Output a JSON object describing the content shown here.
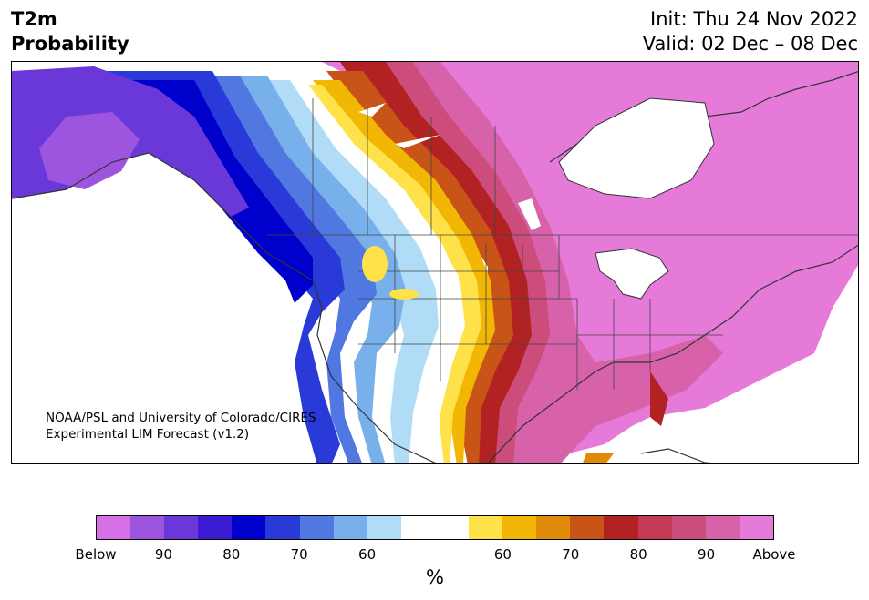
{
  "title": {
    "line1": "T2m",
    "line2": "Probability"
  },
  "init": {
    "line1": "Init: Thu 24 Nov 2022",
    "line2": "Valid: 02 Dec – 08 Dec"
  },
  "credit": {
    "line1": "NOAA/PSL and University of Colorado/CIRES",
    "line2": "Experimental LIM Forecast (v1.2)"
  },
  "colorbar": {
    "unit": "%",
    "colors": [
      "#d670e8",
      "#9d55e0",
      "#6a37d8",
      "#3a1bd2",
      "#0000cc",
      "#2a3ad8",
      "#5078e0",
      "#78b0ec",
      "#b0dcf8",
      "#ffffff",
      "#ffffff",
      "#ffe24a",
      "#f2b705",
      "#e08a0a",
      "#c85418",
      "#b22222",
      "#c43a54",
      "#cc4c7c",
      "#d862aa",
      "#e67ad8"
    ],
    "ticks": [
      "Below",
      "90",
      "80",
      "70",
      "60",
      "60",
      "70",
      "80",
      "90",
      "Above"
    ]
  },
  "map": {
    "colors": {
      "above": "#e67ad8",
      "above90": "#d862aa",
      "above80": "#cc4c7c",
      "above70": "#b22222",
      "above60": "#c85418",
      "yellow": "#f2b705",
      "lightyellow": "#ffe24a",
      "white": "#ffffff",
      "lightblue": "#b0dcf8",
      "blue60": "#78b0ec",
      "blue70": "#5078e0",
      "blue80": "#2a3ad8",
      "blue90": "#0000cc",
      "purple": "#6a37d8",
      "below": "#9d55e0"
    }
  }
}
